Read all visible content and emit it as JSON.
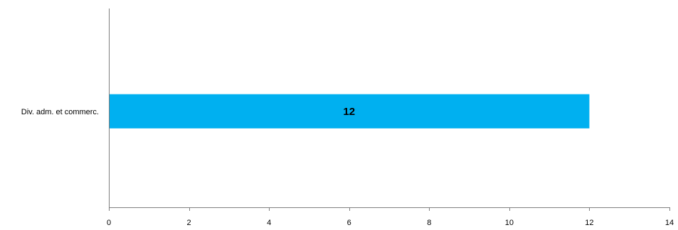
{
  "chart_data": {
    "type": "bar",
    "orientation": "horizontal",
    "categories": [
      "Div. adm. et commerc."
    ],
    "values": [
      12
    ],
    "data_labels": [
      "12"
    ],
    "xlim": [
      0,
      14
    ],
    "x_ticks": [
      0,
      2,
      4,
      6,
      8,
      10,
      12,
      14
    ],
    "x_tick_labels": [
      "0",
      "2",
      "4",
      "6",
      "8",
      "10",
      "12",
      "14"
    ],
    "grid": false,
    "legend": "none",
    "colors": {
      "bar": "#00b0f0",
      "axis": "#808080",
      "text": "#000000"
    }
  }
}
